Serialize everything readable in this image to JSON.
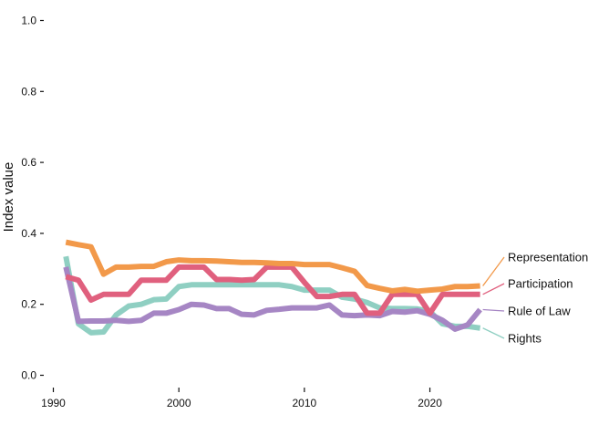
{
  "chart_data": {
    "type": "line",
    "ylabel": "Index value",
    "xlabel": "",
    "xlim": [
      1990,
      2031
    ],
    "ylim": [
      0,
      1
    ],
    "x_ticks": [
      1990,
      2000,
      2010,
      2020
    ],
    "y_ticks": [
      0,
      0.2,
      0.4,
      0.6,
      0.8,
      1
    ],
    "y_tick_labels": [
      "0.0",
      "0.2",
      "0.4",
      "0.6",
      "0.8",
      "1.0"
    ],
    "grid": false,
    "legend": "direct-labels-right",
    "x": [
      1991,
      1992,
      1993,
      1994,
      1995,
      1996,
      1997,
      1998,
      1999,
      2000,
      2001,
      2002,
      2003,
      2004,
      2005,
      2006,
      2007,
      2008,
      2009,
      2010,
      2011,
      2012,
      2013,
      2014,
      2015,
      2016,
      2017,
      2018,
      2019,
      2020,
      2021,
      2022,
      2023,
      2024
    ],
    "series": [
      {
        "name": "Representation",
        "color": "#F2994A",
        "values": [
          0.375,
          0.368,
          0.362,
          0.285,
          0.305,
          0.305,
          0.307,
          0.307,
          0.32,
          0.325,
          0.323,
          0.323,
          0.322,
          0.32,
          0.318,
          0.318,
          0.317,
          0.315,
          0.315,
          0.312,
          0.312,
          0.312,
          0.303,
          0.293,
          0.253,
          0.245,
          0.238,
          0.242,
          0.237,
          0.24,
          0.243,
          0.25,
          0.25,
          0.252
        ]
      },
      {
        "name": "Participation",
        "color": "#E0607E",
        "values": [
          0.278,
          0.268,
          0.212,
          0.228,
          0.228,
          0.228,
          0.268,
          0.268,
          0.268,
          0.305,
          0.305,
          0.305,
          0.27,
          0.27,
          0.268,
          0.27,
          0.305,
          0.305,
          0.305,
          0.262,
          0.222,
          0.222,
          0.228,
          0.228,
          0.175,
          0.175,
          0.228,
          0.228,
          0.228,
          0.175,
          0.228,
          0.228,
          0.228,
          0.228
        ]
      },
      {
        "name": "Rule of Law",
        "color": "#A686C4",
        "values": [
          0.305,
          0.152,
          0.153,
          0.153,
          0.155,
          0.152,
          0.155,
          0.175,
          0.175,
          0.185,
          0.2,
          0.198,
          0.188,
          0.188,
          0.172,
          0.17,
          0.183,
          0.186,
          0.19,
          0.19,
          0.19,
          0.198,
          0.17,
          0.168,
          0.17,
          0.168,
          0.18,
          0.178,
          0.182,
          0.172,
          0.155,
          0.13,
          0.142,
          0.185
        ]
      },
      {
        "name": "Rights",
        "color": "#8FCFC2",
        "values": [
          0.335,
          0.145,
          0.12,
          0.122,
          0.17,
          0.195,
          0.2,
          0.213,
          0.215,
          0.25,
          0.255,
          0.255,
          0.255,
          0.255,
          0.255,
          0.255,
          0.255,
          0.255,
          0.25,
          0.24,
          0.24,
          0.24,
          0.22,
          0.215,
          0.205,
          0.19,
          0.188,
          0.188,
          0.187,
          0.18,
          0.145,
          0.138,
          0.138,
          0.133
        ]
      }
    ]
  }
}
